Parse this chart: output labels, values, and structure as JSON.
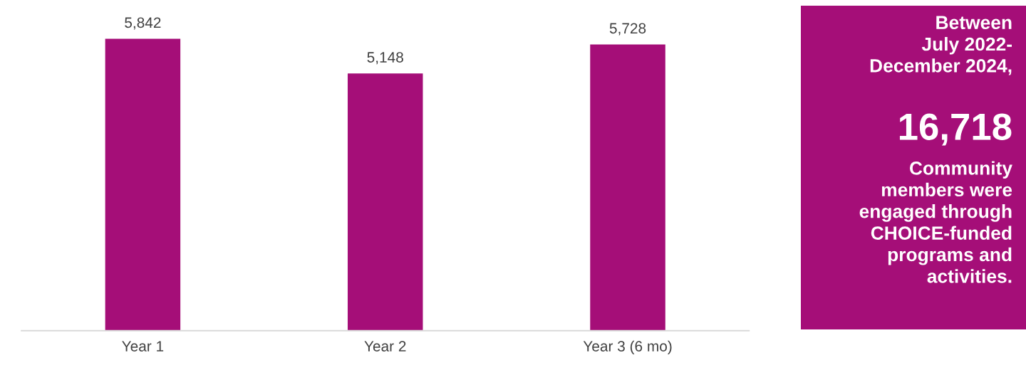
{
  "chart_data": [
    {
      "type": "bar",
      "categories": [
        "Year 1",
        "Year 2",
        "Year 3 (6 mo)"
      ],
      "values": [
        5842,
        5148,
        5728
      ],
      "color": "#a50e78",
      "value_labels": [
        "5,842",
        "5,148",
        "5,728"
      ],
      "tick_labels": "x",
      "grid": false,
      "legend": false
    },
    {
      "type": "other",
      "color": "#a50e78",
      "annotations": [
        "Between\nJuly 2022-\nDecember 2024,",
        "16,718",
        "Community\nmembers were\nengaged through\nCHOICE-funded\nprograms and\nactivities."
      ]
    }
  ]
}
